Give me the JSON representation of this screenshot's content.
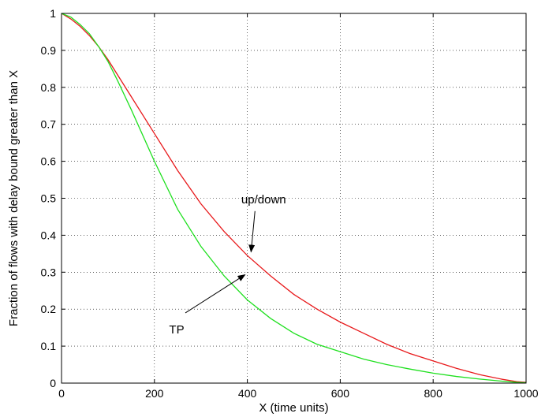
{
  "chart_data": {
    "type": "line",
    "title": "",
    "xlabel": "X (time units)",
    "ylabel": "Fraction of flows with delay bound greater than X",
    "xlim": [
      0,
      1000
    ],
    "ylim": [
      0,
      1
    ],
    "xticks": [
      0,
      200,
      400,
      600,
      800,
      1000
    ],
    "yticks": [
      0,
      0.1,
      0.2,
      0.3,
      0.4,
      0.5,
      0.6,
      0.7,
      0.8,
      0.9,
      1
    ],
    "xtick_labels": [
      "0",
      "200",
      "400",
      "600",
      "800",
      "1000"
    ],
    "ytick_labels": [
      "0",
      "0.1",
      "0.2",
      "0.3",
      "0.4",
      "0.5",
      "0.6",
      "0.7",
      "0.8",
      "0.9",
      "1"
    ],
    "grid": true,
    "series": [
      {
        "name": "up/down",
        "color": "#e8191b",
        "x": [
          0,
          20,
          40,
          60,
          80,
          100,
          120,
          150,
          200,
          250,
          300,
          350,
          400,
          450,
          500,
          550,
          600,
          650,
          700,
          750,
          800,
          850,
          900,
          950,
          980,
          1000
        ],
        "y": [
          1.0,
          0.985,
          0.965,
          0.94,
          0.91,
          0.875,
          0.835,
          0.775,
          0.675,
          0.575,
          0.485,
          0.41,
          0.345,
          0.29,
          0.24,
          0.2,
          0.165,
          0.135,
          0.105,
          0.08,
          0.06,
          0.04,
          0.023,
          0.01,
          0.004,
          0.002
        ]
      },
      {
        "name": "TP",
        "color": "#1fe01f",
        "x": [
          0,
          20,
          40,
          60,
          80,
          100,
          120,
          150,
          200,
          250,
          300,
          350,
          400,
          450,
          500,
          550,
          600,
          650,
          700,
          750,
          800,
          850,
          900,
          950,
          980,
          1000
        ],
        "y": [
          1.0,
          0.99,
          0.97,
          0.945,
          0.91,
          0.87,
          0.82,
          0.74,
          0.6,
          0.47,
          0.37,
          0.29,
          0.225,
          0.175,
          0.135,
          0.105,
          0.085,
          0.065,
          0.05,
          0.038,
          0.027,
          0.018,
          0.011,
          0.005,
          0.002,
          0.001
        ]
      }
    ],
    "annotations": [
      {
        "text": "up/down",
        "target_x": 408,
        "target_y": 0.355,
        "label_x": 430,
        "label_y": 0.495
      },
      {
        "text": "TP",
        "target_x": 395,
        "target_y": 0.293,
        "label_x": 253,
        "label_y": 0.16
      }
    ]
  }
}
